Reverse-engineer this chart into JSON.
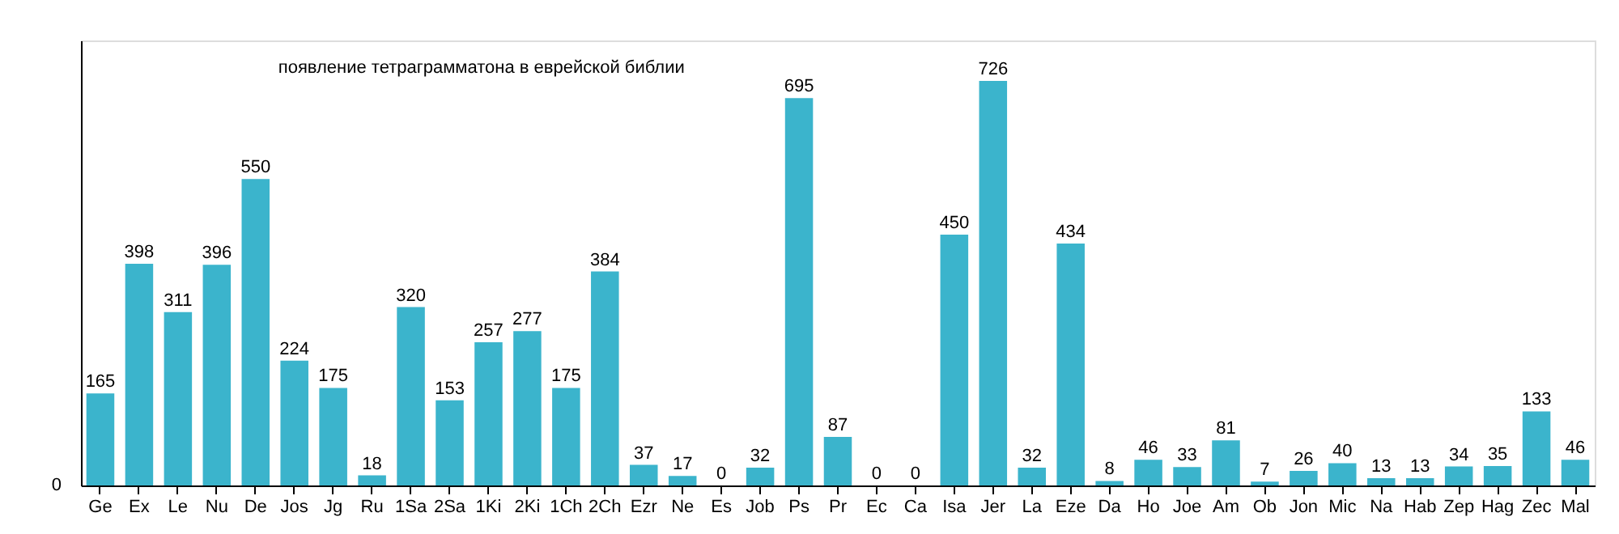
{
  "chart_data": {
    "type": "bar",
    "title": "появление тетраграмматона в еврейской библии",
    "categories": [
      "Ge",
      "Ex",
      "Le",
      "Nu",
      "De",
      "Jos",
      "Jg",
      "Ru",
      "1Sa",
      "2Sa",
      "1Ki",
      "2Ki",
      "1Ch",
      "2Ch",
      "Ezr",
      "Ne",
      "Es",
      "Job",
      "Ps",
      "Pr",
      "Ec",
      "Ca",
      "Isa",
      "Jer",
      "La",
      "Eze",
      "Da",
      "Ho",
      "Joe",
      "Am",
      "Ob",
      "Jon",
      "Mic",
      "Na",
      "Hab",
      "Zep",
      "Hag",
      "Zec",
      "Mal"
    ],
    "values": [
      165,
      398,
      311,
      396,
      550,
      224,
      175,
      18,
      320,
      153,
      257,
      277,
      175,
      384,
      37,
      17,
      0,
      32,
      695,
      87,
      0,
      0,
      450,
      726,
      32,
      434,
      8,
      46,
      33,
      81,
      7,
      26,
      40,
      13,
      13,
      34,
      35,
      133,
      46
    ],
    "color": "#3bb4cc",
    "data_labels": true,
    "annotations": [
      "0"
    ]
  }
}
